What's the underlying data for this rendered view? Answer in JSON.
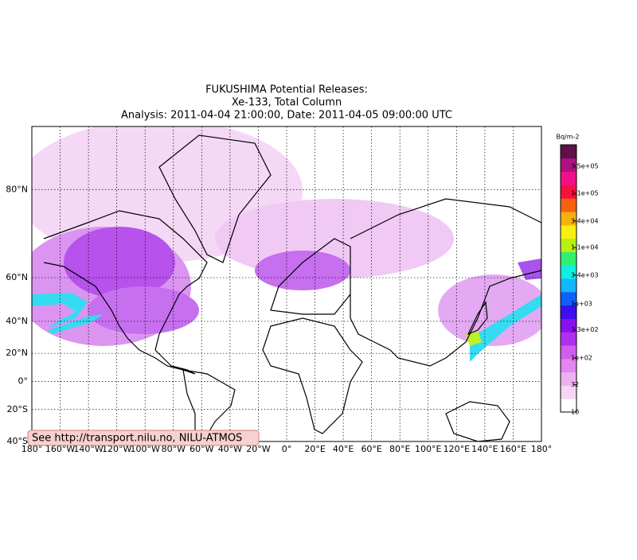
{
  "map": {
    "title": [
      "FUKUSHIMA Potential Releases:",
      "Xe-133, Total Column",
      "Analysis: 2011-04-04  21:00:00, Date: 2011-04-05  09:00:00 UTC"
    ],
    "lon_range": [
      -180,
      180
    ],
    "lat_range": [
      -40,
      85.5
    ],
    "lon_ticks": [
      {
        "value": -180,
        "label": "180°"
      },
      {
        "value": -160,
        "label": "160°W"
      },
      {
        "value": -140,
        "label": "140°W"
      },
      {
        "value": -120,
        "label": "120°W"
      },
      {
        "value": -100,
        "label": "100°W"
      },
      {
        "value": -80,
        "label": "80°W"
      },
      {
        "value": -60,
        "label": "60°W"
      },
      {
        "value": -40,
        "label": "40°W"
      },
      {
        "value": -20,
        "label": "20°W"
      },
      {
        "value": 0,
        "label": "0°"
      },
      {
        "value": 20,
        "label": "20°E"
      },
      {
        "value": 40,
        "label": "40°E"
      },
      {
        "value": 60,
        "label": "60°E"
      },
      {
        "value": 80,
        "label": "80°E"
      },
      {
        "value": 100,
        "label": "100°E"
      },
      {
        "value": 120,
        "label": "120°E"
      },
      {
        "value": 140,
        "label": "140°E"
      },
      {
        "value": 160,
        "label": "160°E"
      },
      {
        "value": 180,
        "label": "180°"
      }
    ],
    "lat_ticks": [
      {
        "value": 80,
        "label": "80°N"
      },
      {
        "value": 60,
        "label": "60°N"
      },
      {
        "value": 40,
        "label": "40°N"
      },
      {
        "value": 20,
        "label": "20°N"
      },
      {
        "value": 0,
        "label": "0°"
      },
      {
        "value": -20,
        "label": "20°S"
      },
      {
        "value": -40,
        "label": "40°S"
      }
    ],
    "colorbar": {
      "unit": "Bq/m-2",
      "log_scale": true,
      "range": [
        10,
        870000
      ],
      "colors": [
        "#ffffff",
        "#f5d6f5",
        "#eeb0f0",
        "#e585f0",
        "#d35cf0",
        "#b030f0",
        "#8a10ee",
        "#3a10f0",
        "#1060ff",
        "#10b8ff",
        "#10f0e0",
        "#30f070",
        "#b8f010",
        "#f8f010",
        "#f8b010",
        "#f86010",
        "#f81040",
        "#f0108a",
        "#b01080",
        "#60104a"
      ],
      "ticks": [
        {
          "value": 350000,
          "label": "3.5e+05"
        },
        {
          "value": 110000,
          "label": "1.1e+05"
        },
        {
          "value": 34000,
          "label": "3.4e+04"
        },
        {
          "value": 11000,
          "label": "1.1e+04"
        },
        {
          "value": 3400,
          "label": "3.4e+03"
        },
        {
          "value": 1000,
          "label": "1e+03"
        },
        {
          "value": 330,
          "label": "3.3e+02"
        },
        {
          "value": 100,
          "label": "1e+02"
        },
        {
          "value": 32,
          "label": "32"
        },
        {
          "value": 10,
          "label": "10"
        }
      ]
    },
    "credit": "See http://transport.nilu.no, NILU-ATMOS"
  }
}
